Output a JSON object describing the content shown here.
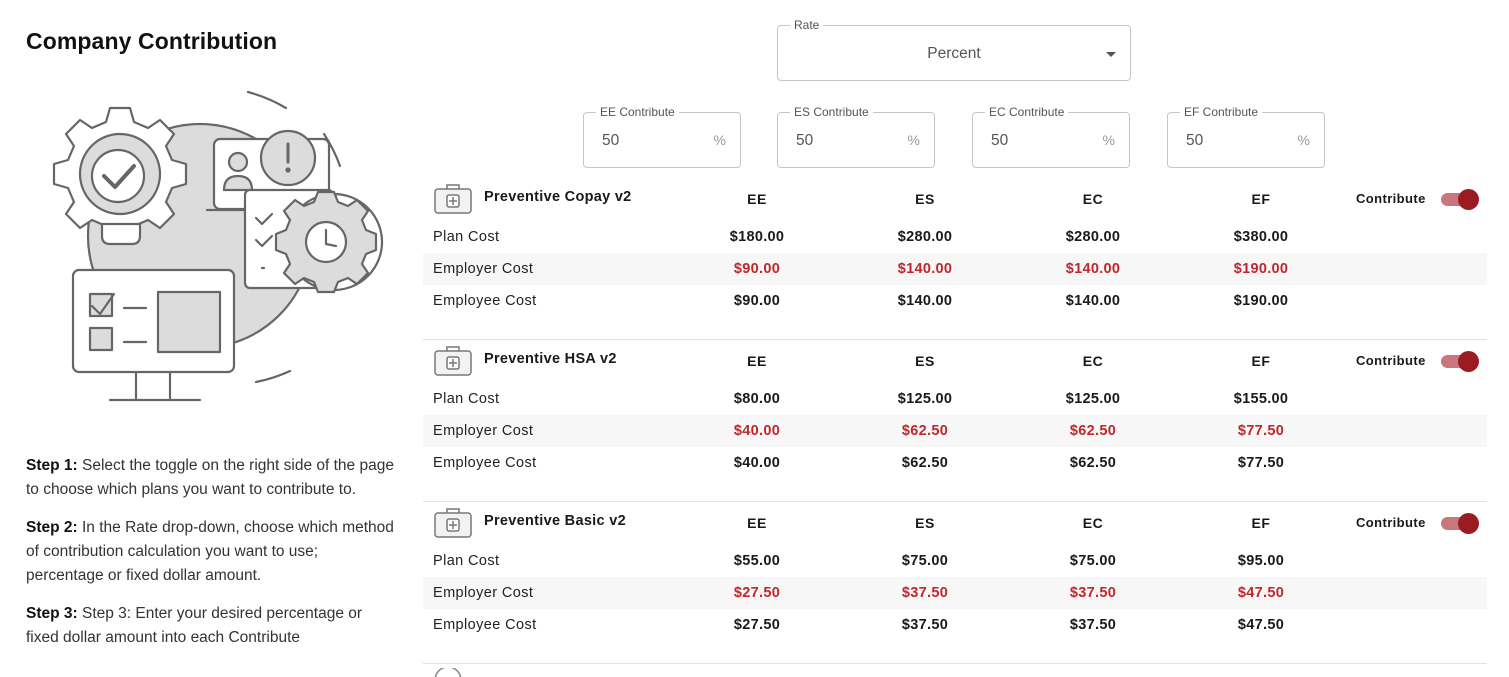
{
  "page": {
    "title": "Company Contribution",
    "accent_color": "#9b1b22",
    "employer_cost_color": "#c1272d"
  },
  "illustration": {
    "icons": [
      "gear-checkmark-icon",
      "user-alert-card-icon",
      "checklist-gear-icon",
      "desktop-monitor-icon"
    ]
  },
  "steps": [
    {
      "label": "Step 1:",
      "text": " Select the toggle on the right side of the page to choose which plans you want to contribute to."
    },
    {
      "label": "Step 2:",
      "text": " In the Rate drop-down, choose which method of contribution calculation you want to use; percentage or fixed dollar amount."
    },
    {
      "label": "Step 3:",
      "text": " Step 3: Enter your desired percentage or fixed dollar amount into each Contribute"
    }
  ],
  "rate": {
    "label": "Rate",
    "value": "Percent"
  },
  "contribute_fields": [
    {
      "label": "EE Contribute",
      "value": "50",
      "unit": "%"
    },
    {
      "label": "ES Contribute",
      "value": "50",
      "unit": "%"
    },
    {
      "label": "EC Contribute",
      "value": "50",
      "unit": "%"
    },
    {
      "label": "EF Contribute",
      "value": "50",
      "unit": "%"
    }
  ],
  "columns": [
    "EE",
    "ES",
    "EC",
    "EF"
  ],
  "row_labels": [
    "Plan Cost",
    "Employer Cost",
    "Employee Cost"
  ],
  "toggle_label": "Contribute",
  "plans": [
    {
      "name": "Preventive Copay v2",
      "contribute": true,
      "plan_cost": [
        "$180.00",
        "$280.00",
        "$280.00",
        "$380.00"
      ],
      "employer_cost": [
        "$90.00",
        "$140.00",
        "$140.00",
        "$190.00"
      ],
      "employee_cost": [
        "$90.00",
        "$140.00",
        "$140.00",
        "$190.00"
      ]
    },
    {
      "name": "Preventive HSA v2",
      "contribute": true,
      "plan_cost": [
        "$80.00",
        "$125.00",
        "$125.00",
        "$155.00"
      ],
      "employer_cost": [
        "$40.00",
        "$62.50",
        "$62.50",
        "$77.50"
      ],
      "employee_cost": [
        "$40.00",
        "$62.50",
        "$62.50",
        "$77.50"
      ]
    },
    {
      "name": "Preventive Basic v2",
      "contribute": true,
      "plan_cost": [
        "$55.00",
        "$75.00",
        "$75.00",
        "$95.00"
      ],
      "employer_cost": [
        "$27.50",
        "$37.50",
        "$37.50",
        "$47.50"
      ],
      "employee_cost": [
        "$27.50",
        "$37.50",
        "$37.50",
        "$47.50"
      ]
    }
  ]
}
